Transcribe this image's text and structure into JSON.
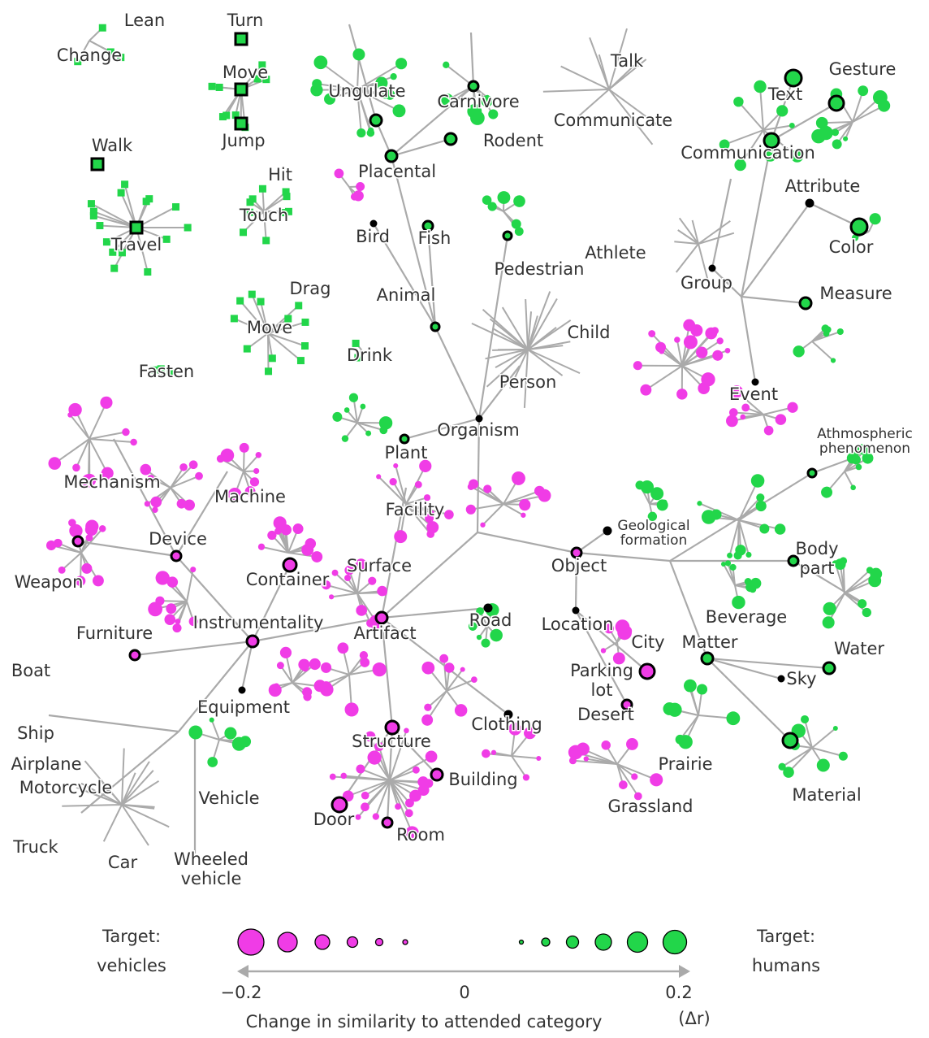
{
  "labels": [
    [
      "Lean"
    ],
    [
      "Change"
    ],
    [
      "Turn"
    ],
    [
      "Move"
    ],
    [
      "Jump"
    ],
    [
      "Walk"
    ],
    [
      "Travel"
    ],
    [
      "Hit"
    ],
    [
      "Touch"
    ],
    [
      "Drag"
    ],
    [
      "Move"
    ],
    [
      "Fasten"
    ],
    [
      "Drink"
    ],
    [
      "Ungulate"
    ],
    [
      "Carnivore"
    ],
    [
      "Rodent"
    ],
    [
      "Placental"
    ],
    [
      "Bird"
    ],
    [
      "Fish"
    ],
    [
      "Talk"
    ],
    [
      "Communicate"
    ],
    [
      "Text"
    ],
    [
      "Gesture"
    ],
    [
      "Communication"
    ],
    [
      "Attribute"
    ],
    [
      "Color"
    ],
    [
      "Group"
    ],
    [
      "Measure"
    ],
    [
      "Pedestrian"
    ],
    [
      "Athlete"
    ],
    [
      "Animal"
    ],
    [
      "Child"
    ],
    [
      "Person"
    ],
    [
      "Event"
    ],
    [
      "Organism"
    ],
    [
      "Plant"
    ],
    [
      "Athmospheric",
      "phenomenon"
    ],
    [
      "Mechanism"
    ],
    [
      "Machine"
    ],
    [
      "Facility"
    ],
    [
      "Geological",
      "formation"
    ],
    [
      "Device"
    ],
    [
      "Object"
    ],
    [
      "Body",
      "part"
    ],
    [
      "Container"
    ],
    [
      "Surface"
    ],
    [
      "Weapon"
    ],
    [
      "Instrumentality"
    ],
    [
      "Road"
    ],
    [
      "Location"
    ],
    [
      "Beverage"
    ],
    [
      "Artifact"
    ],
    [
      "Furniture"
    ],
    [
      "City"
    ],
    [
      "Matter"
    ],
    [
      "Water"
    ],
    [
      "Boat"
    ],
    [
      "Parking",
      "lot"
    ],
    [
      "Sky"
    ],
    [
      "Equipment"
    ],
    [
      "Desert"
    ],
    [
      "Clothing"
    ],
    [
      "Ship"
    ],
    [
      "Structure"
    ],
    [
      "Airplane"
    ],
    [
      "Prairie"
    ],
    [
      "Motorcycle"
    ],
    [
      "Building"
    ],
    [
      "Vehicle"
    ],
    [
      "Material"
    ],
    [
      "Grassland"
    ],
    [
      "Door"
    ],
    [
      "Room"
    ],
    [
      "Truck"
    ],
    [
      "Car"
    ],
    [
      "Wheeled",
      "vehicle"
    ]
  ],
  "legend": {
    "left": [
      "Target:",
      "vehicles"
    ],
    "right": [
      "Target:",
      "humans"
    ],
    "ticks": [
      "−0.2",
      "0",
      "0.2"
    ],
    "axis_label": "Change in similarity to attended category",
    "unit": "(Δr)"
  }
}
